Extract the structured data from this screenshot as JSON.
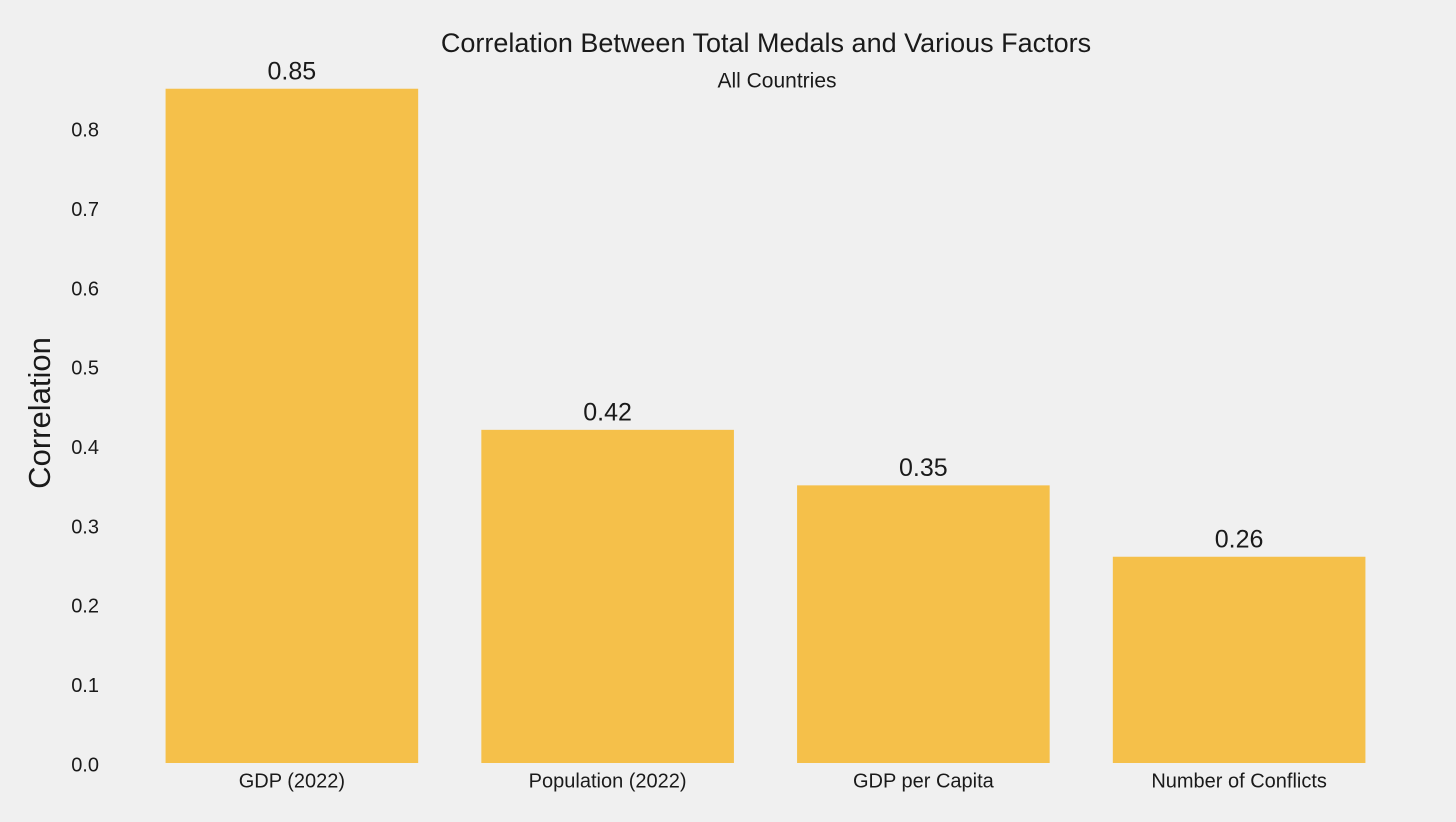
{
  "chart_data": {
    "type": "bar",
    "title": "Correlation Between Total Medals and Various Factors",
    "subtitle": "All Countries",
    "y_label": "Correlation",
    "categories": [
      "GDP (2022)",
      "Population (2022)",
      "GDP per Capita",
      "Number of Conflicts"
    ],
    "values": [
      0.85,
      0.42,
      0.35,
      0.26
    ],
    "color": "#f5c04a",
    "ylim": [
      0,
      0.89
    ],
    "yticks": [
      {
        "value": 0,
        "label": "0.0"
      },
      0.1,
      0.2,
      0.3,
      0.4,
      0.5,
      0.6,
      0.7,
      0.8
    ],
    "grid": false
  }
}
